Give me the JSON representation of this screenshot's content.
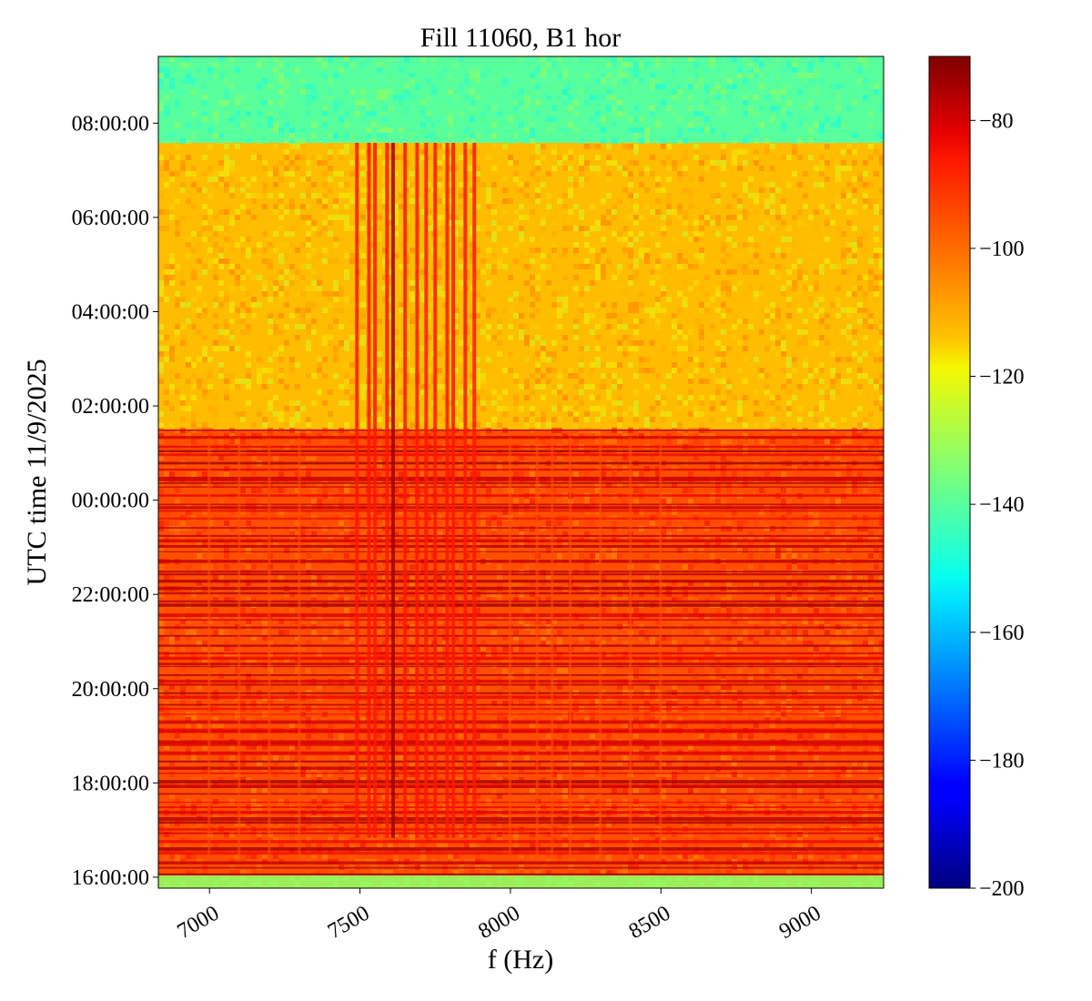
{
  "chart_data": {
    "type": "heatmap",
    "title": "Fill 11060, B1 hor",
    "xlabel": "f (Hz)",
    "ylabel": "UTC time 11/9/2025",
    "xlim": [
      6830,
      9240
    ],
    "x_ticks": [
      7000,
      7500,
      8000,
      8500,
      9000
    ],
    "x_tick_labels": [
      "7000",
      "7500",
      "8000",
      "8500",
      "9000"
    ],
    "y_time_range": [
      "15:46:00",
      "09:25:00"
    ],
    "y_ticks": [
      "16:00:00",
      "18:00:00",
      "20:00:00",
      "22:00:00",
      "00:00:00",
      "02:00:00",
      "04:00:00",
      "06:00:00",
      "08:00:00"
    ],
    "colorbar": {
      "colormap": "jet",
      "vmin": -200,
      "vmax": -70,
      "ticks": [
        -80,
        -100,
        -120,
        -140,
        -160,
        -180,
        -200
      ],
      "tick_labels": [
        "−80",
        "−100",
        "−120",
        "−140",
        "−160",
        "−180",
        "−200"
      ]
    },
    "regions": [
      {
        "from": "07:35:00",
        "to": "09:25:00",
        "level": -140
      },
      {
        "from": "01:30:00",
        "to": "07:35:00",
        "level": -113
      },
      {
        "from": "15:46:00",
        "to": "01:30:00",
        "level": -95
      }
    ],
    "lines_hz": [
      7490,
      7530,
      7550,
      7590,
      7610,
      7650,
      7690,
      7720,
      7750,
      7790,
      7810,
      7850,
      7880,
      8000,
      8090,
      8140,
      8200,
      7000,
      7100,
      7200,
      7300,
      8300,
      8400,
      8500
    ],
    "grid": false,
    "grid_lines": false
  }
}
